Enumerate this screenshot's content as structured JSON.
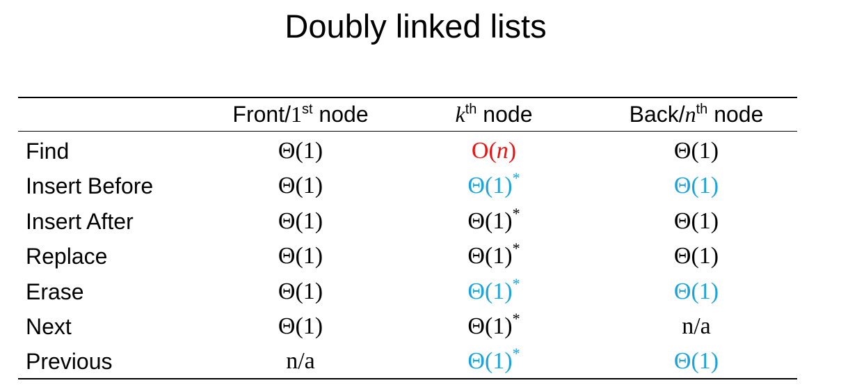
{
  "title": "Doubly linked lists",
  "colors": {
    "default": "#000000",
    "linear": "#ee1111",
    "highlight": "#1aa3dd"
  },
  "columns": [
    {
      "prefix": "Front/",
      "ord": "1",
      "sup": "st",
      "suffix": " node",
      "ord_style": "serif"
    },
    {
      "prefix": "",
      "ord": "k",
      "sup": "th",
      "suffix": " node",
      "ord_style": "italic"
    },
    {
      "prefix": "Back/",
      "ord": "n",
      "sup": "th",
      "suffix": " node",
      "ord_style": "italic"
    }
  ],
  "rows": [
    {
      "op": "Find",
      "cells": [
        {
          "text": "Θ(1)",
          "star": "",
          "color": "default"
        },
        {
          "pre": "O(",
          "var": "n",
          "post": ")",
          "star": "",
          "color": "linear"
        },
        {
          "text": "Θ(1)",
          "star": "",
          "color": "default"
        }
      ]
    },
    {
      "op": "Insert Before",
      "cells": [
        {
          "text": "Θ(1)",
          "star": "",
          "color": "default"
        },
        {
          "text": "Θ(1)",
          "star": "*",
          "color": "highlight"
        },
        {
          "text": "Θ(1)",
          "star": "",
          "color": "highlight"
        }
      ]
    },
    {
      "op": "Insert After",
      "cells": [
        {
          "text": "Θ(1)",
          "star": "",
          "color": "default"
        },
        {
          "text": "Θ(1)",
          "star": "*",
          "color": "default"
        },
        {
          "text": "Θ(1)",
          "star": "",
          "color": "default"
        }
      ]
    },
    {
      "op": "Replace",
      "cells": [
        {
          "text": "Θ(1)",
          "star": "",
          "color": "default"
        },
        {
          "text": "Θ(1)",
          "star": "*",
          "color": "default"
        },
        {
          "text": "Θ(1)",
          "star": "",
          "color": "default"
        }
      ]
    },
    {
      "op": "Erase",
      "cells": [
        {
          "text": "Θ(1)",
          "star": "",
          "color": "default"
        },
        {
          "text": "Θ(1)",
          "star": "*",
          "color": "highlight"
        },
        {
          "text": "Θ(1)",
          "star": "",
          "color": "highlight"
        }
      ]
    },
    {
      "op": "Next",
      "cells": [
        {
          "text": "Θ(1)",
          "star": "",
          "color": "default"
        },
        {
          "text": "Θ(1)",
          "star": "*",
          "color": "default"
        },
        {
          "text": "n/a",
          "star": "",
          "color": "default"
        }
      ]
    },
    {
      "op": "Previous",
      "cells": [
        {
          "text": "n/a",
          "star": "",
          "color": "default"
        },
        {
          "text": "Θ(1)",
          "star": "*",
          "color": "highlight"
        },
        {
          "text": "Θ(1)",
          "star": "",
          "color": "highlight"
        }
      ]
    }
  ]
}
